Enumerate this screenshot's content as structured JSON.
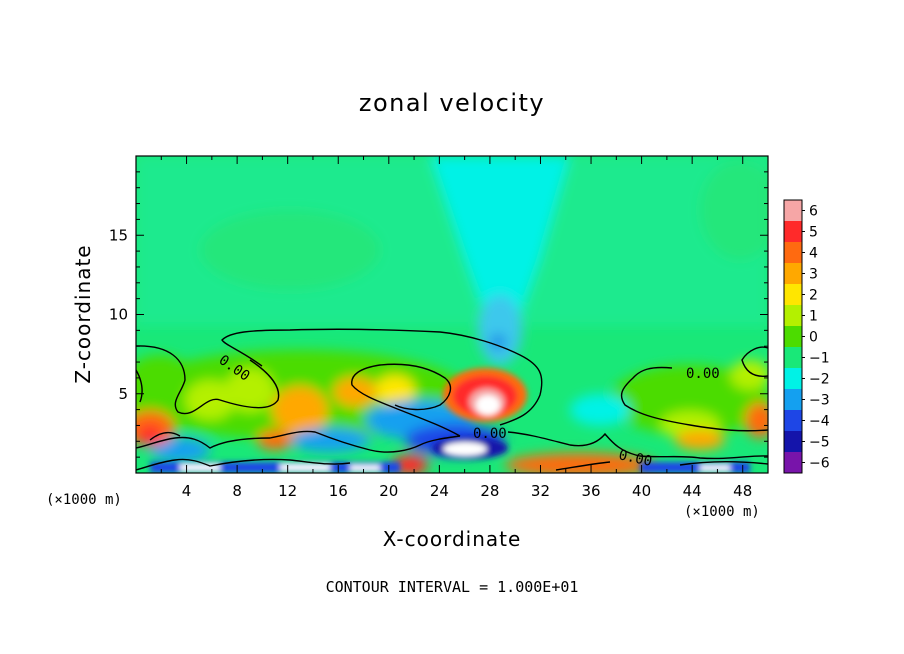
{
  "chart_data": {
    "type": "heatmap",
    "title": "zonal velocity",
    "xlabel": "X-coordinate",
    "ylabel": "Z-coordinate",
    "x_unit_label": "(×1000 m)",
    "x_unit_label_right": "(×1000 m)",
    "xlim": [
      0,
      50
    ],
    "ylim": [
      0,
      20
    ],
    "x_ticks": [
      4,
      8,
      12,
      16,
      20,
      24,
      28,
      32,
      36,
      40,
      44,
      48
    ],
    "x_tick_labels": [
      "4",
      "8",
      "12",
      "16",
      "20",
      "24",
      "28",
      "32",
      "36",
      "40",
      "44",
      "48"
    ],
    "y_ticks": [
      5,
      10,
      15
    ],
    "y_tick_labels": [
      "5",
      "10",
      "15"
    ],
    "colorbar": {
      "levels": [
        6,
        5,
        4,
        3,
        2,
        1,
        0,
        -1,
        -2,
        -3,
        -4,
        -5,
        -6
      ],
      "labels": [
        "6",
        "5",
        "4",
        "3",
        "2",
        "1",
        "0",
        "−1",
        "−2",
        "−3",
        "−4",
        "−5",
        "−6"
      ],
      "colors": [
        "#f6a6a6",
        "#ff2a2a",
        "#ff6a10",
        "#ffa800",
        "#ffe600",
        "#b4f000",
        "#4cdc00",
        "#19e878",
        "#00f2e6",
        "#14a0f0",
        "#1e46e6",
        "#1414aa",
        "#7814aa"
      ]
    },
    "contours": [
      {
        "level": 0.0,
        "label": "0.00",
        "label_at": [
          7.8,
          7.3
        ]
      },
      {
        "level": 0.0,
        "label": "0.00",
        "label_at": [
          43.6,
          6.4
        ]
      },
      {
        "level": 0.0,
        "label": "0.00",
        "label_at": [
          28.2,
          2.5
        ]
      },
      {
        "level": 0.0,
        "label": "0.00",
        "label_at": [
          39.2,
          1.1
        ]
      }
    ],
    "features": [
      {
        "kind": "max",
        "x": 27,
        "z": 4.6,
        "value": 6
      },
      {
        "kind": "min",
        "x": 25.5,
        "z": 1.6,
        "value": -6
      },
      {
        "kind": "min",
        "x": 29,
        "z": 8.5,
        "value": -2.5
      },
      {
        "kind": "max",
        "x": 0.8,
        "z": 2.7,
        "value": 4
      }
    ],
    "annotation": "CONTOUR INTERVAL = 1.000E+01"
  }
}
